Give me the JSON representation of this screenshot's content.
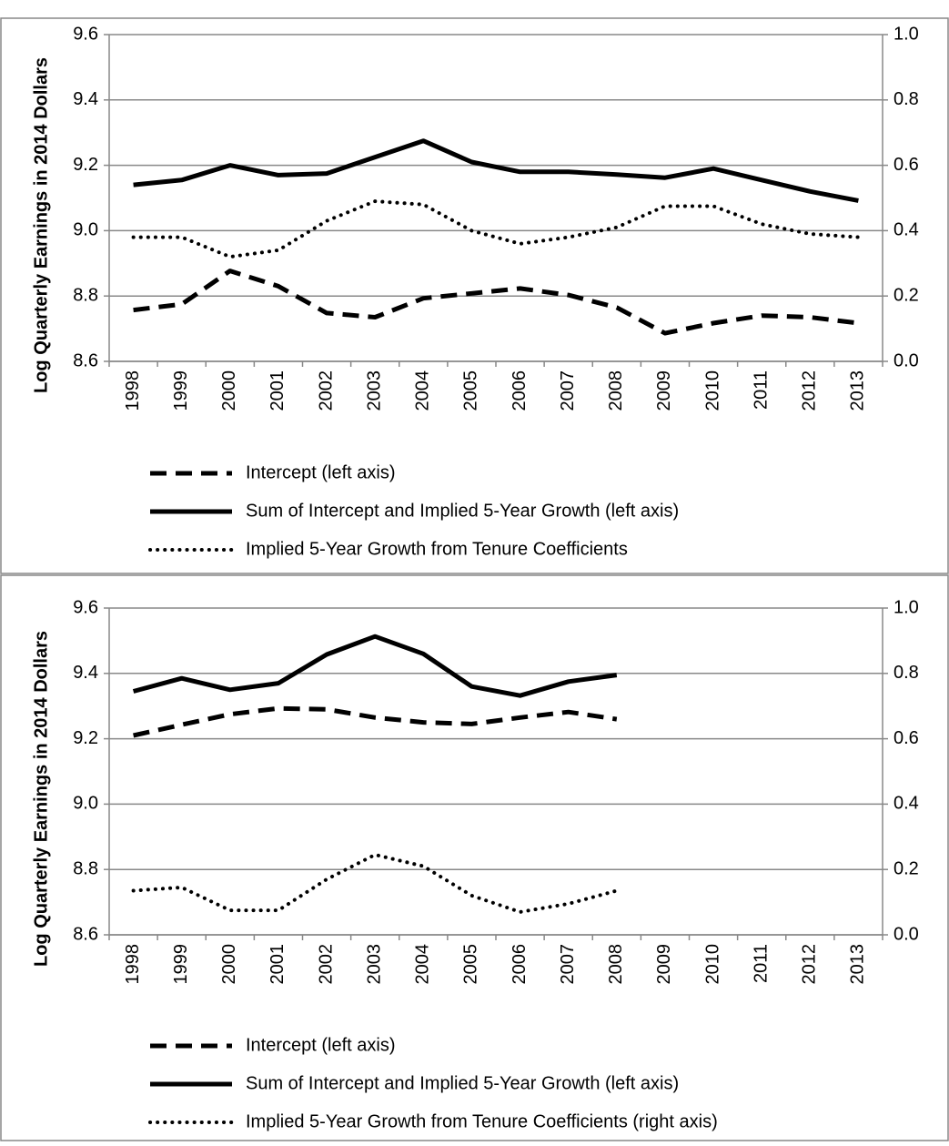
{
  "chart_data": [
    {
      "type": "line",
      "y_axis_label": "Log Quarterly Earnings in 2014 Dollars",
      "categories": [
        "1998",
        "1999",
        "2000",
        "2001",
        "2002",
        "2003",
        "2004",
        "2005",
        "2006",
        "2007",
        "2008",
        "2009",
        "2010",
        "2011",
        "2012",
        "2013"
      ],
      "ylim": [
        8.6,
        9.6
      ],
      "yticks": [
        8.6,
        8.8,
        {
          "value": 9,
          "label": "9.0"
        },
        9.2,
        9.4,
        9.6
      ],
      "y2lim": [
        0,
        1
      ],
      "y2ticks": [
        {
          "value": 0,
          "label": "0.0"
        },
        0.2,
        0.4,
        0.6,
        0.8,
        {
          "value": 1,
          "label": "1.0"
        }
      ],
      "grid": true,
      "series": [
        {
          "name": "Intercept (left axis)",
          "color": "#000000",
          "line_style": "dashed",
          "values": [
            8.757,
            8.775,
            8.877,
            8.83,
            8.748,
            8.735,
            8.793,
            8.808,
            8.823,
            8.803,
            8.765,
            8.686,
            8.717,
            8.74,
            8.735,
            8.717
          ]
        },
        {
          "name": "Sum of Intercept and Implied 5-Year Growth (left axis)",
          "color": "#000000",
          "line_style": "solid",
          "values": [
            9.14,
            9.155,
            9.2,
            9.17,
            9.175,
            9.225,
            9.275,
            9.21,
            9.18,
            9.18,
            9.172,
            9.162,
            9.19,
            9.155,
            9.12,
            9.092
          ]
        },
        {
          "name": "Implied 5-Year Growth from Tenure Coefficients",
          "color": "#000000",
          "line_style": "dotted",
          "axis": "y2",
          "values": [
            0.38,
            0.38,
            0.32,
            0.34,
            0.43,
            0.49,
            0.48,
            0.4,
            0.36,
            0.38,
            0.41,
            0.475,
            0.475,
            0.42,
            0.39,
            0.38
          ]
        }
      ]
    },
    {
      "type": "line",
      "y_axis_label": "Log Quarterly Earnings in 2014 Dollars",
      "categories": [
        "1998",
        "1999",
        "2000",
        "2001",
        "2002",
        "2003",
        "2004",
        "2005",
        "2006",
        "2007",
        "2008",
        "2009",
        "2010",
        "2011",
        "2012",
        "2013"
      ],
      "ylim": [
        8.6,
        9.6
      ],
      "yticks": [
        8.6,
        8.8,
        {
          "value": 9,
          "label": "9.0"
        },
        9.2,
        9.4,
        9.6
      ],
      "y2lim": [
        0,
        1
      ],
      "y2ticks": [
        {
          "value": 0,
          "label": "0.0"
        },
        0.2,
        0.4,
        0.6,
        0.8,
        {
          "value": 1,
          "label": "1.0"
        }
      ],
      "grid": true,
      "series": [
        {
          "name": "Intercept (left axis)",
          "color": "#000000",
          "line_style": "dashed",
          "values": [
            9.21,
            9.243,
            9.275,
            9.293,
            9.29,
            9.265,
            9.25,
            9.245,
            9.265,
            9.282,
            9.26,
            null,
            null,
            null,
            null,
            null
          ]
        },
        {
          "name": "Sum of Intercept and Implied 5-Year Growth (left axis)",
          "color": "#000000",
          "line_style": "solid",
          "values": [
            9.345,
            9.385,
            9.35,
            9.37,
            9.458,
            9.513,
            9.46,
            9.36,
            9.332,
            9.375,
            9.395,
            null,
            null,
            null,
            null,
            null
          ]
        },
        {
          "name": "Implied 5-Year Growth from Tenure Coefficients (right axis)",
          "color": "#000000",
          "line_style": "dotted",
          "axis": "y2",
          "values": [
            0.135,
            0.145,
            0.075,
            0.075,
            0.17,
            0.245,
            0.21,
            0.12,
            0.07,
            0.095,
            0.135,
            null,
            null,
            null,
            null,
            null
          ]
        }
      ]
    }
  ]
}
